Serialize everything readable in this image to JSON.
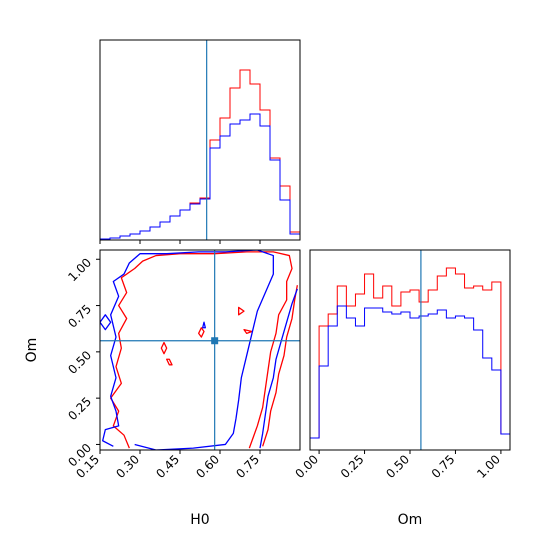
{
  "chart_data": [
    {
      "type": "histogram",
      "panel": "H0 marginal",
      "xlim": [
        0.1,
        1.0
      ],
      "ylim": [
        0,
        1.0
      ],
      "truth": 0.58,
      "series": [
        {
          "name": "",
          "color": "#ff0000",
          "x": [
            0.1,
            0.145,
            0.19,
            0.235,
            0.28,
            0.325,
            0.37,
            0.415,
            0.46,
            0.505,
            0.55,
            0.595,
            0.64,
            0.685,
            0.73,
            0.775,
            0.82,
            0.865,
            0.91,
            0.955,
            1.0
          ],
          "values": [
            0.005,
            0.01,
            0.02,
            0.03,
            0.045,
            0.065,
            0.09,
            0.12,
            0.15,
            0.185,
            0.21,
            0.5,
            0.61,
            0.76,
            0.85,
            0.78,
            0.65,
            0.41,
            0.27,
            0.04
          ]
        },
        {
          "name": "",
          "color": "#0000ff",
          "x": [
            0.1,
            0.145,
            0.19,
            0.235,
            0.28,
            0.325,
            0.37,
            0.415,
            0.46,
            0.505,
            0.55,
            0.595,
            0.64,
            0.685,
            0.73,
            0.775,
            0.82,
            0.865,
            0.91,
            0.955,
            1.0
          ],
          "values": [
            0.005,
            0.01,
            0.02,
            0.03,
            0.045,
            0.065,
            0.09,
            0.12,
            0.15,
            0.18,
            0.205,
            0.46,
            0.52,
            0.58,
            0.6,
            0.63,
            0.57,
            0.4,
            0.2,
            0.03
          ]
        }
      ]
    },
    {
      "type": "contour",
      "panel": "H0 vs Om joint",
      "xlabel": "H0",
      "ylabel": "Om",
      "xlim": [
        0.15,
        0.9
      ],
      "ylim": [
        -0.03,
        1.05
      ],
      "xticks": [
        "0.15",
        "0.30",
        "0.45",
        "0.60",
        "0.75"
      ],
      "xtick_values": [
        0.15,
        0.3,
        0.45,
        0.6,
        0.75
      ],
      "yticks": [
        "0.00",
        "0.25",
        "0.50",
        "0.75",
        "1.00"
      ],
      "ytick_values": [
        0,
        0.25,
        0.5,
        0.75,
        1.0
      ],
      "truth": {
        "H0": 0.58,
        "Om": 0.56
      },
      "contours": [
        {
          "color": "#ff0000",
          "points": [
            [
              0.4,
              0.46
            ],
            [
              0.41,
              0.43
            ],
            [
              0.42,
              0.43
            ],
            [
              0.41,
              0.46
            ]
          ]
        },
        {
          "color": "#ff0000",
          "points": [
            [
              0.39,
              0.49
            ],
            [
              0.38,
              0.52
            ],
            [
              0.39,
              0.55
            ],
            [
              0.4,
              0.52
            ]
          ]
        },
        {
          "color": "#ff0000",
          "points": [
            [
              0.53,
              0.63
            ],
            [
              0.52,
              0.6
            ],
            [
              0.53,
              0.58
            ],
            [
              0.54,
              0.61
            ]
          ]
        },
        {
          "color": "#ff0000",
          "points": [
            [
              0.67,
              0.74
            ],
            [
              0.69,
              0.72
            ],
            [
              0.67,
              0.7
            ]
          ]
        },
        {
          "color": "#ff0000",
          "points": [
            [
              0.69,
              0.62
            ],
            [
              0.72,
              0.61
            ],
            [
              0.7,
              0.6
            ]
          ]
        },
        {
          "color": "#ff0000",
          "points": [
            [
              0.26,
              -0.02
            ],
            [
              0.24,
              0.05
            ],
            [
              0.2,
              0.1
            ],
            [
              0.22,
              0.18
            ],
            [
              0.19,
              0.25
            ],
            [
              0.23,
              0.33
            ],
            [
              0.21,
              0.42
            ],
            [
              0.23,
              0.52
            ],
            [
              0.22,
              0.6
            ],
            [
              0.25,
              0.68
            ],
            [
              0.22,
              0.75
            ],
            [
              0.25,
              0.82
            ],
            [
              0.23,
              0.9
            ],
            [
              0.28,
              0.95
            ],
            [
              0.31,
              0.99
            ],
            [
              0.36,
              1.02
            ],
            [
              0.45,
              1.03
            ],
            [
              0.58,
              1.03
            ],
            [
              0.7,
              1.04
            ],
            [
              0.8,
              1.04
            ],
            [
              0.86,
              1.02
            ],
            [
              0.87,
              0.95
            ],
            [
              0.85,
              0.88
            ],
            [
              0.85,
              0.78
            ],
            [
              0.82,
              0.7
            ],
            [
              0.81,
              0.6
            ],
            [
              0.79,
              0.5
            ],
            [
              0.78,
              0.4
            ],
            [
              0.77,
              0.3
            ],
            [
              0.76,
              0.2
            ],
            [
              0.74,
              0.1
            ],
            [
              0.72,
              0.02
            ],
            [
              0.71,
              -0.02
            ]
          ]
        },
        {
          "color": "#ff0000",
          "points": [
            [
              0.76,
              -0.01
            ],
            [
              0.78,
              0.08
            ],
            [
              0.79,
              0.18
            ],
            [
              0.81,
              0.28
            ],
            [
              0.82,
              0.38
            ],
            [
              0.84,
              0.48
            ],
            [
              0.85,
              0.58
            ],
            [
              0.87,
              0.68
            ],
            [
              0.88,
              0.78
            ],
            [
              0.89,
              0.86
            ]
          ]
        },
        {
          "color": "#0000ff",
          "points": [
            [
              0.54,
              0.66
            ],
            [
              0.535,
              0.63
            ],
            [
              0.545,
              0.63
            ]
          ]
        },
        {
          "color": "#0000ff",
          "points": [
            [
              0.2,
              -0.01
            ],
            [
              0.16,
              0.02
            ],
            [
              0.17,
              0.08
            ],
            [
              0.22,
              0.1
            ],
            [
              0.21,
              0.18
            ],
            [
              0.19,
              0.26
            ],
            [
              0.21,
              0.36
            ],
            [
              0.19,
              0.48
            ],
            [
              0.21,
              0.58
            ],
            [
              0.19,
              0.7
            ],
            [
              0.22,
              0.8
            ],
            [
              0.2,
              0.88
            ],
            [
              0.24,
              0.92
            ],
            [
              0.26,
              0.98
            ],
            [
              0.3,
              1.03
            ],
            [
              0.4,
              1.03
            ],
            [
              0.52,
              1.04
            ],
            [
              0.62,
              1.04
            ],
            [
              0.74,
              1.05
            ],
            [
              0.8,
              1.02
            ],
            [
              0.8,
              0.92
            ],
            [
              0.77,
              0.82
            ],
            [
              0.74,
              0.72
            ],
            [
              0.72,
              0.6
            ],
            [
              0.7,
              0.48
            ],
            [
              0.68,
              0.36
            ],
            [
              0.67,
              0.24
            ],
            [
              0.66,
              0.14
            ],
            [
              0.65,
              0.06
            ],
            [
              0.62,
              0.0
            ],
            [
              0.5,
              -0.02
            ],
            [
              0.36,
              -0.03
            ],
            [
              0.28,
              0.0
            ]
          ]
        },
        {
          "color": "#0000ff",
          "points": [
            [
              0.75,
              -0.02
            ],
            [
              0.76,
              0.06
            ],
            [
              0.77,
              0.16
            ],
            [
              0.78,
              0.26
            ],
            [
              0.8,
              0.36
            ],
            [
              0.81,
              0.46
            ],
            [
              0.83,
              0.56
            ],
            [
              0.85,
              0.66
            ],
            [
              0.87,
              0.76
            ],
            [
              0.89,
              0.84
            ]
          ]
        },
        {
          "color": "#0000ff",
          "points": [
            [
              0.17,
              0.62
            ],
            [
              0.15,
              0.66
            ],
            [
              0.17,
              0.7
            ],
            [
              0.19,
              0.66
            ]
          ]
        }
      ]
    },
    {
      "type": "histogram",
      "panel": "Om marginal",
      "xlabel": "Om",
      "xlim": [
        -0.05,
        1.05
      ],
      "ylim": [
        0,
        1.0
      ],
      "xticks": [
        "0.00",
        "0.25",
        "0.50",
        "0.75",
        "1.00"
      ],
      "xtick_values": [
        0,
        0.25,
        0.5,
        0.75,
        1.0
      ],
      "truth": 0.56,
      "series": [
        {
          "name": "",
          "color": "#ff0000",
          "x": [
            -0.05,
            0.0,
            0.05,
            0.1,
            0.15,
            0.2,
            0.25,
            0.3,
            0.35,
            0.4,
            0.45,
            0.5,
            0.55,
            0.6,
            0.65,
            0.7,
            0.75,
            0.8,
            0.85,
            0.9,
            0.95,
            1.0,
            1.05
          ],
          "values": [
            0.06,
            0.62,
            0.68,
            0.82,
            0.72,
            0.78,
            0.88,
            0.76,
            0.82,
            0.72,
            0.79,
            0.8,
            0.74,
            0.8,
            0.87,
            0.91,
            0.88,
            0.81,
            0.82,
            0.8,
            0.84,
            0.08
          ]
        },
        {
          "name": "",
          "color": "#0000ff",
          "x": [
            -0.05,
            0.0,
            0.05,
            0.1,
            0.15,
            0.2,
            0.25,
            0.3,
            0.35,
            0.4,
            0.45,
            0.5,
            0.55,
            0.6,
            0.65,
            0.7,
            0.75,
            0.8,
            0.85,
            0.9,
            0.95,
            1.0,
            1.05
          ],
          "values": [
            0.06,
            0.42,
            0.62,
            0.72,
            0.66,
            0.62,
            0.71,
            0.71,
            0.69,
            0.68,
            0.69,
            0.66,
            0.67,
            0.68,
            0.7,
            0.66,
            0.67,
            0.66,
            0.6,
            0.46,
            0.4,
            0.08
          ]
        }
      ]
    }
  ]
}
